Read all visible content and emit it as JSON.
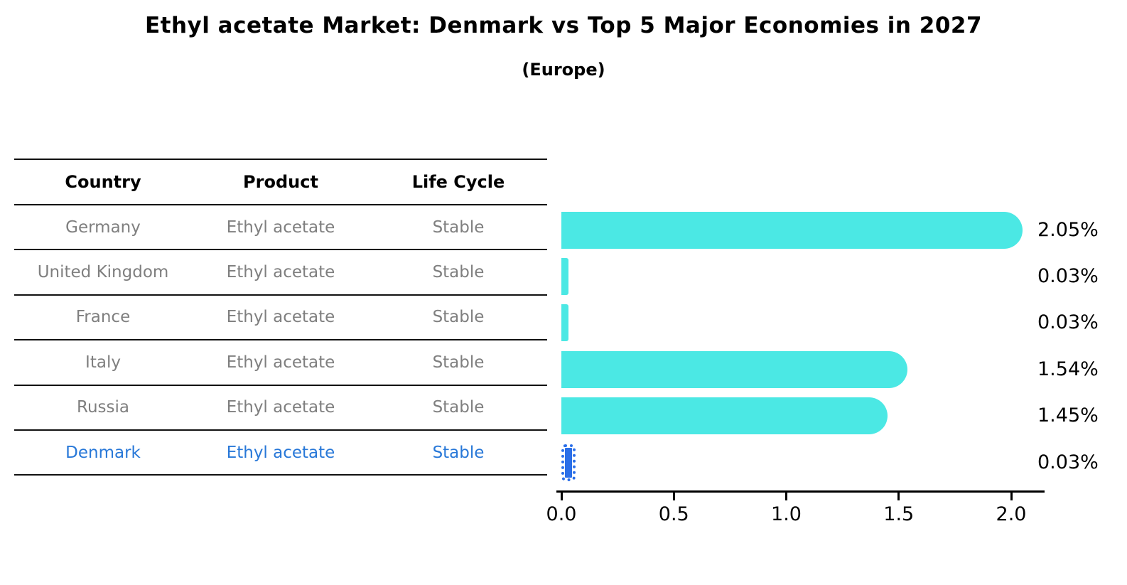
{
  "title": "Ethyl acetate Market: Denmark vs Top 5 Major Economies in 2027",
  "subtitle": "(Europe)",
  "table": {
    "headers": [
      "Country",
      "Product",
      "Life Cycle"
    ],
    "rows": [
      {
        "country": "Germany",
        "product": "Ethyl acetate",
        "life_cycle": "Stable",
        "highlight": false
      },
      {
        "country": "United Kingdom",
        "product": "Ethyl acetate",
        "life_cycle": "Stable",
        "highlight": false
      },
      {
        "country": "France",
        "product": "Ethyl acetate",
        "life_cycle": "Stable",
        "highlight": false
      },
      {
        "country": "Italy",
        "product": "Ethyl acetate",
        "life_cycle": "Stable",
        "highlight": false
      },
      {
        "country": "Russia",
        "product": "Ethyl acetate",
        "life_cycle": "Stable",
        "highlight": true
      }
    ]
  },
  "chart_data": {
    "type": "bar",
    "orientation": "horizontal",
    "title": "Ethyl acetate Market: Denmark vs Top 5 Major Economies in 2027",
    "subtitle": "(Europe)",
    "categories": [
      "Germany",
      "United Kingdom",
      "France",
      "Italy",
      "Russia",
      "Denmark"
    ],
    "values": [
      2.05,
      0.03,
      0.03,
      1.54,
      1.45,
      0.03
    ],
    "value_labels": [
      "2.05%",
      "0.03%",
      "0.03%",
      "1.54%",
      "1.45%",
      "0.03%"
    ],
    "highlighted_category": "Denmark",
    "xlabel": "",
    "ylabel": "",
    "xticks": [
      0.0,
      0.5,
      1.0,
      1.5,
      2.0
    ],
    "xtick_labels": [
      "0.0",
      "0.5",
      "1.0",
      "1.5",
      "2.0"
    ],
    "xlim": [
      0,
      2.15
    ],
    "grid": false,
    "legend": false
  },
  "colors": {
    "bar": "#4be8e4",
    "highlight_bar": "#2b6fe8",
    "highlight_text": "#2878d8",
    "table_text": "#7f7f7f",
    "axis": "#000000"
  }
}
